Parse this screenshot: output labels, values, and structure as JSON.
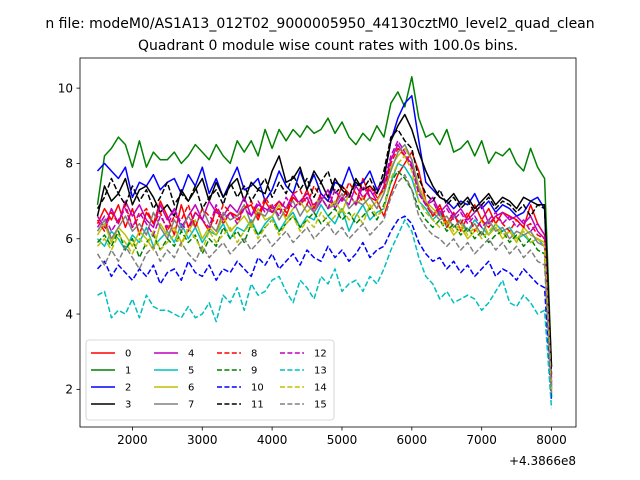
{
  "chart_data": {
    "type": "line",
    "suptitle": "n file: modeM0/AS1A13_012T02_9000005950_44130cztM0_level2_quad_clean",
    "title": "Quadrant 0 module wise count rates with 100.0s bins.",
    "xlabel": "",
    "ylabel": "",
    "x_offset_label": "+4.3866e8",
    "xlim": [
      1250,
      8350
    ],
    "ylim": [
      1.0,
      10.8
    ],
    "xticks": [
      2000,
      3000,
      4000,
      5000,
      6000,
      7000,
      8000
    ],
    "yticks": [
      2,
      4,
      6,
      8,
      10
    ],
    "grid": false,
    "legend_position": "lower-left",
    "legend_columns": 4,
    "x_start": 1500,
    "x_step": 100,
    "series": [
      {
        "name": "0",
        "color": "#ff0000",
        "dash": "solid",
        "values": [
          6.4,
          6.8,
          6.5,
          6.9,
          6.3,
          6.8,
          6.1,
          6.7,
          6.4,
          7.0,
          6.6,
          6.1,
          6.9,
          6.3,
          6.7,
          6.5,
          6.2,
          6.8,
          6.4,
          6.7,
          6.6,
          6.8,
          6.9,
          6.5,
          7.0,
          6.7,
          6.8,
          6.6,
          7.1,
          6.9,
          7.3,
          6.8,
          7.2,
          7.0,
          6.9,
          7.4,
          7.2,
          6.9,
          7.6,
          7.1,
          7.0,
          6.6,
          7.2,
          7.7,
          8.0,
          8.3,
          7.8,
          7.0,
          6.6,
          6.9,
          6.4,
          6.7,
          6.2,
          6.6,
          6.9,
          6.5,
          6.8,
          6.4,
          6.7,
          6.6,
          6.5,
          6.3,
          6.9,
          6.4,
          6.1,
          2.3
        ]
      },
      {
        "name": "1",
        "color": "#008000",
        "dash": "solid",
        "values": [
          6.9,
          8.2,
          8.4,
          8.7,
          8.5,
          7.9,
          8.6,
          7.9,
          8.3,
          8.1,
          8.1,
          8.3,
          8.0,
          8.2,
          8.5,
          8.3,
          8.1,
          8.5,
          8.2,
          8.0,
          8.6,
          8.3,
          8.6,
          8.2,
          8.9,
          8.4,
          8.9,
          8.6,
          8.9,
          8.7,
          9.0,
          8.8,
          8.9,
          9.2,
          8.8,
          9.1,
          8.7,
          8.5,
          8.8,
          8.6,
          9.0,
          8.7,
          9.6,
          9.9,
          9.5,
          10.3,
          9.2,
          8.7,
          8.8,
          8.5,
          8.9,
          8.3,
          8.4,
          8.6,
          8.2,
          8.6,
          8.0,
          8.3,
          8.2,
          8.4,
          8.0,
          7.8,
          8.4,
          7.9,
          7.6,
          2.6
        ]
      },
      {
        "name": "2",
        "color": "#0000ff",
        "dash": "solid",
        "values": [
          7.8,
          8.0,
          7.8,
          7.6,
          7.9,
          7.1,
          7.5,
          7.4,
          7.7,
          7.3,
          7.5,
          7.6,
          7.2,
          7.7,
          7.4,
          7.9,
          7.2,
          7.6,
          7.1,
          7.5,
          7.9,
          7.3,
          7.4,
          7.6,
          7.0,
          7.3,
          7.8,
          7.4,
          7.2,
          7.8,
          7.3,
          7.7,
          7.2,
          7.0,
          7.5,
          7.4,
          7.9,
          7.4,
          7.5,
          7.8,
          7.3,
          7.6,
          8.6,
          9.2,
          9.6,
          9.8,
          8.6,
          7.5,
          7.3,
          7.1,
          7.0,
          6.8,
          7.0,
          6.9,
          7.2,
          6.8,
          7.0,
          6.7,
          6.9,
          6.8,
          6.6,
          6.7,
          7.0,
          7.1,
          6.8,
          2.1
        ]
      },
      {
        "name": "3",
        "color": "#000000",
        "dash": "solid",
        "values": [
          6.6,
          7.4,
          7.0,
          7.2,
          7.6,
          6.9,
          7.3,
          7.4,
          7.1,
          6.7,
          6.9,
          6.6,
          7.3,
          7.0,
          7.3,
          7.6,
          7.0,
          7.5,
          7.1,
          7.4,
          7.6,
          7.0,
          7.5,
          7.3,
          7.2,
          7.8,
          8.2,
          7.5,
          7.6,
          7.9,
          7.3,
          7.8,
          7.5,
          7.1,
          7.6,
          7.3,
          7.1,
          7.6,
          7.3,
          7.4,
          7.2,
          7.6,
          8.6,
          9.0,
          9.3,
          8.9,
          8.3,
          7.8,
          7.4,
          7.1,
          7.0,
          7.2,
          6.9,
          7.1,
          6.8,
          7.0,
          7.2,
          6.9,
          7.1,
          7.0,
          6.8,
          7.1,
          7.0,
          6.9,
          6.9,
          2.6
        ]
      },
      {
        "name": "4",
        "color": "#bf00bf",
        "dash": "solid",
        "values": [
          6.6,
          6.3,
          6.8,
          6.4,
          7.0,
          6.6,
          6.9,
          6.5,
          6.3,
          6.9,
          6.5,
          6.8,
          6.3,
          6.6,
          6.9,
          6.5,
          7.0,
          6.7,
          6.6,
          6.9,
          6.7,
          7.1,
          6.6,
          6.9,
          6.8,
          6.7,
          7.0,
          6.8,
          7.2,
          6.9,
          7.1,
          6.7,
          7.0,
          7.3,
          6.8,
          7.1,
          6.9,
          7.4,
          7.1,
          7.3,
          7.0,
          7.4,
          8.1,
          8.5,
          8.2,
          8.0,
          7.3,
          6.9,
          7.1,
          6.7,
          6.9,
          6.6,
          6.8,
          6.5,
          6.7,
          6.9,
          6.4,
          6.6,
          6.7,
          6.5,
          6.6,
          6.4,
          6.6,
          6.2,
          6.0,
          2.0
        ]
      },
      {
        "name": "5",
        "color": "#00bfbf",
        "dash": "solid",
        "values": [
          6.0,
          5.8,
          6.2,
          6.0,
          5.7,
          6.1,
          5.9,
          6.3,
          5.8,
          6.0,
          6.2,
          5.9,
          6.4,
          6.0,
          6.3,
          5.9,
          6.2,
          6.1,
          6.4,
          6.0,
          6.3,
          6.2,
          6.5,
          6.1,
          6.4,
          6.6,
          6.2,
          6.5,
          6.7,
          6.3,
          6.6,
          6.5,
          6.9,
          6.6,
          6.4,
          6.8,
          6.2,
          6.6,
          6.9,
          6.5,
          6.7,
          6.8,
          7.5,
          8.0,
          7.9,
          7.6,
          7.0,
          6.8,
          6.5,
          6.7,
          6.3,
          6.6,
          6.4,
          6.2,
          6.5,
          6.3,
          6.1,
          6.4,
          6.2,
          6.3,
          6.0,
          6.1,
          5.9,
          6.0,
          5.8,
          1.8
        ]
      },
      {
        "name": "6",
        "color": "#bfbf00",
        "dash": "solid",
        "values": [
          6.1,
          6.4,
          5.9,
          6.3,
          6.1,
          5.8,
          6.2,
          6.0,
          5.7,
          6.4,
          6.1,
          6.3,
          5.9,
          6.2,
          6.5,
          6.0,
          6.3,
          6.1,
          6.6,
          6.2,
          6.4,
          6.6,
          6.3,
          6.8,
          6.5,
          6.6,
          6.9,
          6.5,
          6.8,
          7.0,
          6.7,
          6.9,
          7.1,
          6.8,
          7.0,
          6.7,
          7.2,
          6.9,
          7.1,
          6.8,
          7.0,
          7.3,
          7.9,
          8.2,
          8.4,
          8.1,
          7.4,
          7.0,
          6.8,
          6.6,
          6.4,
          6.1,
          6.3,
          6.0,
          6.2,
          6.5,
          6.1,
          6.3,
          6.0,
          6.2,
          5.9,
          6.3,
          6.1,
          6.0,
          5.9,
          1.9
        ]
      },
      {
        "name": "7",
        "color": "#808080",
        "dash": "solid",
        "values": [
          6.2,
          6.5,
          6.0,
          6.3,
          6.6,
          6.2,
          6.4,
          6.1,
          6.7,
          6.3,
          6.0,
          6.5,
          6.2,
          6.6,
          6.3,
          6.8,
          6.4,
          6.2,
          6.7,
          6.5,
          6.6,
          6.9,
          6.4,
          6.7,
          6.6,
          6.9,
          6.5,
          6.8,
          7.0,
          6.6,
          6.9,
          6.7,
          7.1,
          6.8,
          6.9,
          7.2,
          6.8,
          7.0,
          6.9,
          7.1,
          6.8,
          7.2,
          7.8,
          8.3,
          8.5,
          8.1,
          7.3,
          6.9,
          6.7,
          6.5,
          6.6,
          6.3,
          6.5,
          6.2,
          6.4,
          6.1,
          6.5,
          6.2,
          6.3,
          6.0,
          6.2,
          6.1,
          6.2,
          5.9,
          5.8,
          2.0
        ]
      },
      {
        "name": "8",
        "color": "#ff0000",
        "dash": "dashed",
        "values": [
          6.5,
          6.2,
          6.7,
          6.4,
          6.9,
          6.3,
          6.6,
          6.8,
          6.4,
          6.7,
          6.2,
          6.6,
          6.5,
          6.9,
          6.3,
          6.8,
          6.6,
          6.4,
          6.9,
          6.7,
          6.5,
          6.8,
          7.0,
          6.6,
          7.1,
          6.8,
          7.0,
          6.7,
          7.2,
          7.3,
          6.9,
          7.4,
          7.1,
          6.8,
          7.3,
          7.0,
          7.5,
          7.2,
          7.0,
          7.4,
          7.1,
          7.3,
          8.0,
          8.4,
          8.2,
          7.9,
          7.2,
          6.9,
          6.6,
          6.8,
          6.3,
          6.6,
          6.4,
          6.7,
          6.2,
          6.5,
          6.3,
          6.6,
          6.4,
          6.2,
          6.5,
          6.3,
          6.4,
          6.1,
          6.0,
          2.2
        ]
      },
      {
        "name": "9",
        "color": "#008000",
        "dash": "dashed",
        "values": [
          5.9,
          6.1,
          5.8,
          6.2,
          5.7,
          6.0,
          5.5,
          5.9,
          6.1,
          5.7,
          6.0,
          5.8,
          6.2,
          5.9,
          6.1,
          5.6,
          6.0,
          5.8,
          6.3,
          6.0,
          6.2,
          5.9,
          6.4,
          6.1,
          6.3,
          6.5,
          6.2,
          6.4,
          6.6,
          6.3,
          6.5,
          6.7,
          6.4,
          6.6,
          6.8,
          6.5,
          6.7,
          6.4,
          6.6,
          6.8,
          6.5,
          6.9,
          7.5,
          7.8,
          7.6,
          7.3,
          6.8,
          6.5,
          6.3,
          6.5,
          6.2,
          6.4,
          6.1,
          6.3,
          6.0,
          6.2,
          5.9,
          6.1,
          6.2,
          5.9,
          6.1,
          5.8,
          6.0,
          5.7,
          5.6,
          1.8
        ]
      },
      {
        "name": "10",
        "color": "#0000ff",
        "dash": "dashed",
        "values": [
          5.2,
          5.4,
          5.0,
          5.3,
          5.1,
          4.9,
          5.2,
          5.0,
          5.3,
          4.8,
          5.1,
          5.2,
          4.9,
          5.4,
          5.1,
          5.0,
          5.3,
          4.9,
          5.2,
          5.1,
          5.4,
          5.2,
          5.0,
          5.5,
          5.3,
          5.6,
          5.2,
          5.4,
          5.6,
          5.3,
          5.7,
          5.5,
          5.4,
          5.8,
          5.5,
          5.7,
          5.4,
          5.6,
          5.9,
          5.5,
          5.7,
          5.8,
          6.2,
          6.5,
          6.6,
          6.4,
          5.9,
          5.6,
          5.4,
          5.5,
          5.2,
          5.4,
          5.1,
          5.3,
          5.0,
          5.2,
          5.4,
          5.0,
          5.2,
          5.1,
          4.9,
          5.2,
          5.0,
          4.8,
          4.7,
          1.7
        ]
      },
      {
        "name": "11",
        "color": "#000000",
        "dash": "dashed",
        "values": [
          6.8,
          7.1,
          7.6,
          7.2,
          6.9,
          7.4,
          7.0,
          7.3,
          6.8,
          7.1,
          7.5,
          6.9,
          7.2,
          7.0,
          7.4,
          6.8,
          7.1,
          7.3,
          6.9,
          7.5,
          7.1,
          7.4,
          7.0,
          7.3,
          7.6,
          7.1,
          7.5,
          7.2,
          7.7,
          7.3,
          7.6,
          7.1,
          7.5,
          7.8,
          7.2,
          7.4,
          7.1,
          7.5,
          7.3,
          7.6,
          7.2,
          7.8,
          8.7,
          8.9,
          8.6,
          8.4,
          7.6,
          7.2,
          7.0,
          7.3,
          6.9,
          7.1,
          6.8,
          7.0,
          6.7,
          6.9,
          7.1,
          6.8,
          7.0,
          6.9,
          6.7,
          6.9,
          6.6,
          6.9,
          6.8,
          2.4
        ]
      },
      {
        "name": "12",
        "color": "#bf00bf",
        "dash": "dashed",
        "values": [
          6.3,
          6.6,
          6.2,
          6.5,
          6.8,
          6.3,
          6.7,
          6.4,
          6.1,
          6.6,
          6.3,
          6.8,
          6.4,
          6.2,
          6.7,
          6.5,
          6.3,
          6.9,
          6.5,
          6.7,
          6.4,
          6.8,
          6.6,
          7.0,
          6.7,
          6.9,
          6.6,
          7.1,
          6.8,
          7.0,
          7.2,
          6.9,
          7.1,
          6.8,
          7.3,
          7.0,
          7.2,
          6.9,
          7.4,
          7.1,
          7.3,
          7.5,
          8.2,
          8.6,
          8.3,
          7.9,
          7.2,
          6.9,
          7.0,
          6.6,
          6.8,
          6.5,
          6.7,
          6.4,
          6.6,
          6.3,
          6.5,
          6.7,
          6.4,
          6.6,
          6.3,
          6.5,
          6.2,
          6.4,
          6.1,
          2.1
        ]
      },
      {
        "name": "13",
        "color": "#00bfbf",
        "dash": "dashed",
        "values": [
          4.5,
          4.6,
          3.9,
          4.1,
          4.0,
          4.4,
          3.9,
          4.5,
          4.2,
          4.1,
          4.1,
          4.0,
          3.9,
          4.2,
          3.9,
          4.0,
          4.3,
          3.8,
          4.5,
          4.3,
          4.7,
          4.1,
          4.8,
          4.5,
          4.6,
          4.9,
          5.0,
          4.6,
          4.3,
          4.9,
          4.7,
          4.4,
          5.0,
          4.8,
          5.2,
          4.6,
          4.8,
          4.9,
          4.6,
          5.0,
          4.8,
          5.2,
          5.7,
          6.1,
          6.5,
          6.2,
          5.5,
          5.0,
          4.8,
          4.4,
          4.6,
          4.3,
          4.4,
          4.5,
          4.4,
          4.1,
          4.3,
          4.6,
          4.9,
          4.3,
          4.2,
          4.5,
          4.3,
          4.0,
          4.1,
          1.5
        ]
      },
      {
        "name": "14",
        "color": "#bfbf00",
        "dash": "dashed",
        "values": [
          5.8,
          6.0,
          5.7,
          6.1,
          5.9,
          5.6,
          6.0,
          5.8,
          6.2,
          5.7,
          5.9,
          6.1,
          5.8,
          6.3,
          6.0,
          5.7,
          6.2,
          5.9,
          6.1,
          6.3,
          5.9,
          6.2,
          6.4,
          6.0,
          6.3,
          6.5,
          6.1,
          6.4,
          6.6,
          6.2,
          6.5,
          6.3,
          6.7,
          6.4,
          6.6,
          6.8,
          6.5,
          6.7,
          6.4,
          6.9,
          6.6,
          6.8,
          7.6,
          8.0,
          8.2,
          7.8,
          7.0,
          6.7,
          6.5,
          6.3,
          6.5,
          6.2,
          6.4,
          6.1,
          6.3,
          6.0,
          6.2,
          6.4,
          6.1,
          6.2,
          6.0,
          6.2,
          5.9,
          6.0,
          5.8,
          2.0
        ]
      },
      {
        "name": "15",
        "color": "#808080",
        "dash": "dashed",
        "values": [
          5.6,
          5.3,
          5.7,
          5.4,
          5.8,
          5.5,
          5.2,
          5.6,
          5.8,
          5.4,
          5.7,
          5.5,
          5.9,
          5.6,
          5.4,
          5.8,
          5.5,
          5.7,
          5.9,
          5.6,
          5.8,
          6.0,
          5.7,
          5.9,
          6.1,
          5.8,
          6.0,
          6.2,
          5.9,
          6.1,
          6.3,
          6.0,
          6.2,
          6.4,
          6.1,
          6.3,
          6.0,
          6.2,
          6.4,
          6.1,
          6.3,
          6.5,
          7.1,
          7.5,
          7.7,
          7.3,
          6.6,
          6.3,
          6.1,
          6.0,
          5.8,
          6.0,
          5.7,
          5.9,
          5.6,
          5.8,
          6.0,
          5.7,
          5.9,
          5.6,
          5.8,
          5.5,
          5.7,
          5.4,
          5.3,
          1.9
        ]
      }
    ]
  }
}
